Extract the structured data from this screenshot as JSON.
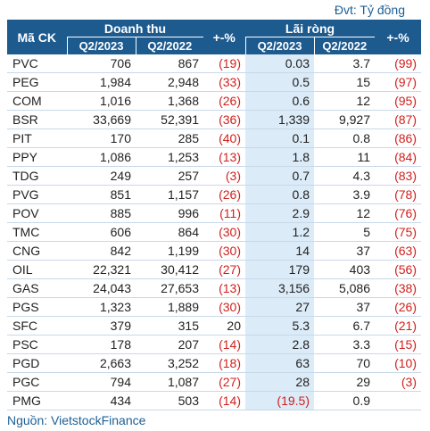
{
  "unit": "Đvt: Tỷ đồng",
  "table": {
    "header": {
      "code": "Mã CK",
      "revenue": "Doanh thu",
      "revenue_change": "+-%",
      "profit": "Lãi ròng",
      "profit_change": "+-%",
      "periods": [
        "Q2/2023",
        "Q2/2022",
        "Q2/2023",
        "Q2/2022"
      ]
    },
    "rows": [
      [
        "PVC",
        "706",
        "867",
        "(19)",
        "0.03",
        "3.7",
        "(99)"
      ],
      [
        "PEG",
        "1,984",
        "2,948",
        "(33)",
        "0.5",
        "15",
        "(97)"
      ],
      [
        "COM",
        "1,016",
        "1,368",
        "(26)",
        "0.6",
        "12",
        "(95)"
      ],
      [
        "BSR",
        "33,669",
        "52,391",
        "(36)",
        "1,339",
        "9,927",
        "(87)"
      ],
      [
        "PIT",
        "170",
        "285",
        "(40)",
        "0.1",
        "0.8",
        "(86)"
      ],
      [
        "PPY",
        "1,086",
        "1,253",
        "(13)",
        "1.8",
        "11",
        "(84)"
      ],
      [
        "TDG",
        "249",
        "257",
        "(3)",
        "0.7",
        "4.3",
        "(83)"
      ],
      [
        "PVG",
        "851",
        "1,157",
        "(26)",
        "0.8",
        "3.9",
        "(78)"
      ],
      [
        "POV",
        "885",
        "996",
        "(11)",
        "2.9",
        "12",
        "(76)"
      ],
      [
        "TMC",
        "606",
        "864",
        "(30)",
        "1.2",
        "5",
        "(75)"
      ],
      [
        "CNG",
        "842",
        "1,199",
        "(30)",
        "14",
        "37",
        "(63)"
      ],
      [
        "OIL",
        "22,321",
        "30,412",
        "(27)",
        "179",
        "403",
        "(56)"
      ],
      [
        "GAS",
        "24,043",
        "27,653",
        "(13)",
        "3,156",
        "5,086",
        "(38)"
      ],
      [
        "PGS",
        "1,323",
        "1,889",
        "(30)",
        "27",
        "37",
        "(26)"
      ],
      [
        "SFC",
        "379",
        "315",
        "20",
        "5.3",
        "6.7",
        "(21)"
      ],
      [
        "PSC",
        "178",
        "207",
        "(14)",
        "2.8",
        "3.3",
        "(15)"
      ],
      [
        "PGD",
        "2,663",
        "3,252",
        "(18)",
        "63",
        "70",
        "(10)"
      ],
      [
        "PGC",
        "794",
        "1,087",
        "(27)",
        "28",
        "29",
        "(3)"
      ],
      [
        "PMG",
        "434",
        "503",
        "(14)",
        "(19.5)",
        "0.9"
      ]
    ]
  },
  "source": "Nguồn: VietstockFinance"
}
